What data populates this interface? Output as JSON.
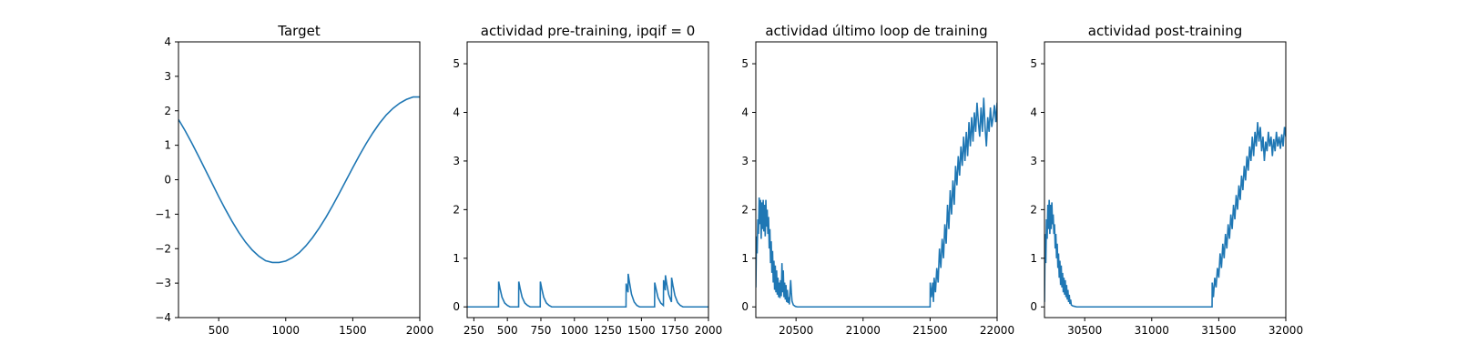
{
  "chart_data": [
    {
      "type": "line",
      "title": "Target",
      "xlim": [
        200,
        2000
      ],
      "ylim": [
        -4,
        4
      ],
      "xticks": [
        500,
        1000,
        1500,
        2000
      ],
      "yticks": [
        -4,
        -3,
        -2,
        -1,
        0,
        1,
        2,
        3,
        4
      ],
      "series": [
        {
          "color": "#1f77b4",
          "x": [
            200,
            250,
            300,
            350,
            400,
            450,
            500,
            550,
            600,
            650,
            700,
            750,
            800,
            850,
            900,
            950,
            1000,
            1050,
            1100,
            1150,
            1200,
            1250,
            1300,
            1350,
            1400,
            1450,
            1500,
            1550,
            1600,
            1650,
            1700,
            1750,
            1800,
            1850,
            1900,
            1950,
            2000
          ],
          "y": [
            1.75,
            1.42,
            1.06,
            0.68,
            0.29,
            -0.1,
            -0.49,
            -0.86,
            -1.21,
            -1.53,
            -1.81,
            -2.04,
            -2.22,
            -2.35,
            -2.4,
            -2.4,
            -2.36,
            -2.26,
            -2.12,
            -1.92,
            -1.68,
            -1.4,
            -1.09,
            -0.75,
            -0.39,
            -0.02,
            0.35,
            0.71,
            1.05,
            1.36,
            1.64,
            1.88,
            2.07,
            2.22,
            2.33,
            2.4,
            2.4
          ]
        }
      ]
    },
    {
      "type": "line",
      "title": "actividad pre-training, ipqif = 0",
      "xlim": [
        200,
        2000
      ],
      "ylim": [
        -0.22,
        5.45
      ],
      "xticks": [
        250,
        500,
        750,
        1000,
        1250,
        1500,
        1750,
        2000
      ],
      "yticks": [
        0,
        1,
        2,
        3,
        4,
        5
      ],
      "series": [
        {
          "color": "#1f77b4",
          "x": [
            200,
            434,
            435,
            445,
            460,
            480,
            500,
            520,
            584,
            585,
            595,
            610,
            630,
            650,
            670,
            745,
            746,
            756,
            771,
            791,
            811,
            831,
            1385,
            1386,
            1396,
            1400,
            1401,
            1411,
            1426,
            1446,
            1466,
            1486,
            1598,
            1599,
            1609,
            1624,
            1644,
            1664,
            1665,
            1675,
            1678,
            1679,
            1689,
            1704,
            1724,
            1725,
            1735,
            1750,
            1770,
            1790,
            1810,
            2000
          ],
          "y": [
            0,
            0,
            0.52,
            0.38,
            0.2,
            0.08,
            0.03,
            0,
            0,
            0.52,
            0.38,
            0.2,
            0.08,
            0.03,
            0,
            0,
            0.52,
            0.38,
            0.2,
            0.08,
            0.03,
            0,
            0,
            0.48,
            0.35,
            0.3,
            0.68,
            0.5,
            0.26,
            0.1,
            0.03,
            0,
            0,
            0.5,
            0.37,
            0.19,
            0.08,
            0.03,
            0.55,
            0.4,
            0.34,
            0.65,
            0.47,
            0.25,
            0.1,
            0.6,
            0.44,
            0.23,
            0.09,
            0.03,
            0,
            0
          ]
        }
      ]
    },
    {
      "type": "line",
      "title": "actividad último loop de training",
      "xlim": [
        20200,
        22000
      ],
      "ylim": [
        -0.22,
        5.45
      ],
      "xticks": [
        20500,
        21000,
        21500,
        22000
      ],
      "yticks": [
        0,
        1,
        2,
        3,
        4,
        5
      ],
      "series": [
        {
          "color": "#1f77b4",
          "x": [
            20200,
            20205,
            20210,
            20215,
            20220,
            20225,
            20230,
            20235,
            20240,
            20245,
            20250,
            20255,
            20260,
            20265,
            20270,
            20275,
            20280,
            20285,
            20290,
            20295,
            20300,
            20305,
            20310,
            20315,
            20320,
            20325,
            20330,
            20335,
            20340,
            20345,
            20350,
            20355,
            20360,
            20365,
            20370,
            20375,
            20380,
            20385,
            20390,
            20395,
            20400,
            20405,
            20410,
            20415,
            20420,
            20425,
            20430,
            20435,
            20440,
            20445,
            20450,
            20455,
            20460,
            20465,
            20470,
            20480,
            20495,
            20510,
            21500,
            21501,
            21510,
            21520,
            21525,
            21530,
            21540,
            21550,
            21560,
            21570,
            21580,
            21590,
            21600,
            21610,
            21620,
            21630,
            21640,
            21650,
            21660,
            21670,
            21680,
            21690,
            21700,
            21710,
            21720,
            21730,
            21740,
            21750,
            21760,
            21770,
            21780,
            21790,
            21800,
            21810,
            21820,
            21830,
            21840,
            21850,
            21860,
            21870,
            21880,
            21890,
            21900,
            21910,
            21920,
            21930,
            21940,
            21950,
            21960,
            21970,
            21980,
            21990,
            22000
          ],
          "y": [
            0.4,
            1.45,
            1.1,
            1.8,
            1.5,
            2.25,
            1.7,
            2.2,
            1.4,
            2.15,
            1.6,
            2.2,
            1.55,
            2.1,
            1.45,
            2.2,
            1.65,
            2.0,
            1.5,
            1.85,
            1.2,
            1.6,
            0.9,
            1.35,
            0.7,
            1.15,
            0.5,
            0.95,
            0.35,
            0.85,
            0.3,
            0.75,
            0.25,
            0.6,
            0.2,
            0.5,
            0.18,
            0.55,
            0.22,
            0.9,
            0.3,
            0.75,
            0.2,
            0.5,
            0.15,
            0.45,
            0.1,
            0.35,
            0.08,
            0.2,
            0.05,
            0.3,
            0.55,
            0.3,
            0.12,
            0.04,
            0.01,
            0,
            0,
            0.5,
            0.2,
            0.5,
            0.1,
            0.6,
            0.3,
            0.8,
            0.5,
            1.2,
            0.8,
            1.4,
            1.0,
            1.7,
            1.3,
            2.1,
            1.6,
            2.4,
            1.9,
            2.6,
            2.1,
            2.9,
            2.5,
            3.1,
            2.7,
            3.3,
            2.9,
            3.5,
            3.0,
            3.6,
            3.1,
            3.8,
            3.3,
            3.9,
            3.4,
            4.0,
            3.6,
            4.2,
            3.8,
            3.5,
            4.1,
            3.6,
            4.3,
            3.7,
            3.3,
            3.9,
            3.6,
            4.1,
            3.7,
            3.9,
            4.15,
            3.8,
            4.2
          ]
        }
      ]
    },
    {
      "type": "line",
      "title": "actividad post-training",
      "xlim": [
        30200,
        32000
      ],
      "ylim": [
        -0.22,
        5.45
      ],
      "xticks": [
        30500,
        31000,
        31500,
        32000
      ],
      "yticks": [
        0,
        1,
        2,
        3,
        4,
        5
      ],
      "series": [
        {
          "color": "#1f77b4",
          "x": [
            30200,
            30205,
            30210,
            30215,
            30220,
            30225,
            30230,
            30235,
            30240,
            30245,
            30250,
            30255,
            30260,
            30265,
            30270,
            30275,
            30280,
            30285,
            30290,
            30295,
            30300,
            30305,
            30310,
            30315,
            30320,
            30325,
            30330,
            30335,
            30340,
            30345,
            30350,
            30355,
            30360,
            30365,
            30370,
            30375,
            30380,
            30385,
            30390,
            30395,
            30400,
            30410,
            30425,
            30440,
            31450,
            31451,
            31460,
            31470,
            31480,
            31490,
            31500,
            31510,
            31520,
            31530,
            31540,
            31550,
            31560,
            31570,
            31580,
            31590,
            31600,
            31610,
            31620,
            31630,
            31640,
            31650,
            31660,
            31670,
            31680,
            31690,
            31700,
            31710,
            31720,
            31730,
            31740,
            31750,
            31760,
            31770,
            31780,
            31790,
            31800,
            31810,
            31820,
            31830,
            31840,
            31850,
            31860,
            31870,
            31880,
            31890,
            31900,
            31910,
            31920,
            31930,
            31940,
            31950,
            31960,
            31970,
            31980,
            31990,
            32000
          ],
          "y": [
            0.1,
            1.5,
            0.9,
            1.8,
            1.4,
            2.1,
            1.6,
            2.2,
            1.5,
            2.1,
            1.6,
            2.15,
            1.7,
            1.9,
            1.5,
            1.7,
            1.2,
            1.5,
            1.0,
            1.3,
            0.8,
            1.1,
            0.6,
            0.95,
            0.45,
            0.85,
            0.4,
            0.7,
            0.3,
            0.6,
            0.25,
            0.55,
            0.2,
            0.45,
            0.15,
            0.35,
            0.1,
            0.25,
            0.06,
            0.15,
            0.04,
            0.02,
            0.01,
            0,
            0,
            0.5,
            0.2,
            0.6,
            0.4,
            0.8,
            0.6,
            1.1,
            0.8,
            1.3,
            1.0,
            1.5,
            1.2,
            1.7,
            1.4,
            1.9,
            1.6,
            2.1,
            1.8,
            2.3,
            2.0,
            2.5,
            2.2,
            2.7,
            2.4,
            2.9,
            2.6,
            3.1,
            2.8,
            3.3,
            3.0,
            3.5,
            3.1,
            3.6,
            3.3,
            3.8,
            3.4,
            3.7,
            3.2,
            3.5,
            3.0,
            3.4,
            3.2,
            3.6,
            3.3,
            3.5,
            3.1,
            3.45,
            3.2,
            3.6,
            3.3,
            3.5,
            3.25,
            3.55,
            3.3,
            3.7,
            3.5
          ]
        }
      ]
    }
  ]
}
